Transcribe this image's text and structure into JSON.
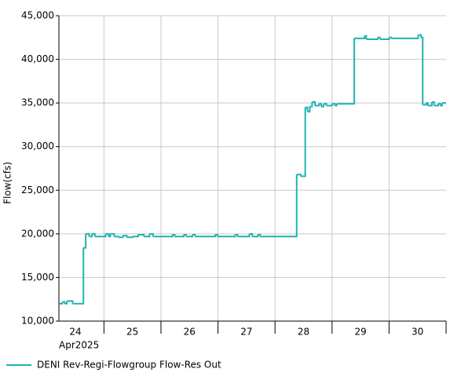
{
  "chart_data": {
    "type": "step-line",
    "y_label": "Flow(cfs)",
    "x_sublabel": "Apr2025",
    "xlim": [
      24.21,
      31
    ],
    "xticks": [
      {
        "value": 24,
        "label": "24"
      },
      {
        "value": 25,
        "label": "25"
      },
      {
        "value": 26,
        "label": "26"
      },
      {
        "value": 27,
        "label": "27"
      },
      {
        "value": 28,
        "label": "28"
      },
      {
        "value": 29,
        "label": "29"
      },
      {
        "value": 30,
        "label": "30"
      }
    ],
    "ylim": [
      10000,
      45000
    ],
    "yticks": [
      {
        "value": 10000,
        "label": "10,000"
      },
      {
        "value": 15000,
        "label": "15,000"
      },
      {
        "value": 20000,
        "label": "20,000"
      },
      {
        "value": 25000,
        "label": "25,000"
      },
      {
        "value": 30000,
        "label": "30,000"
      },
      {
        "value": 35000,
        "label": "35,000"
      },
      {
        "value": 40000,
        "label": "40,000"
      },
      {
        "value": 45000,
        "label": "45,000"
      }
    ],
    "grid": true,
    "legend": "bottom-left",
    "series": [
      {
        "name": "DENI Rev-Regi-Flowgroup Flow-Res Out",
        "color": "#1fb3b3",
        "x": [
          24.22,
          24.27,
          24.31,
          24.35,
          24.45,
          24.64,
          24.68,
          24.74,
          24.79,
          24.84,
          25.03,
          25.08,
          25.11,
          25.18,
          25.25,
          25.33,
          25.4,
          25.5,
          25.6,
          25.7,
          25.8,
          25.86,
          26.2,
          26.24,
          26.4,
          26.44,
          26.55,
          26.6,
          26.95,
          26.99,
          27.3,
          27.34,
          27.55,
          27.6,
          27.7,
          27.74,
          28.38,
          28.45,
          28.53,
          28.57,
          28.61,
          28.65,
          28.7,
          28.77,
          28.81,
          28.85,
          28.9,
          29.0,
          29.05,
          29.08,
          29.39,
          29.57,
          29.6,
          29.8,
          29.84,
          30.0,
          30.04,
          30.51,
          30.56,
          30.59,
          30.65,
          30.68,
          30.75,
          30.79,
          30.86,
          30.9,
          30.93
        ],
        "values": [
          12000,
          12200,
          12000,
          12300,
          12000,
          18400,
          20000,
          19700,
          20000,
          19700,
          20000,
          19700,
          20000,
          19700,
          19600,
          19800,
          19600,
          19700,
          19900,
          19700,
          20000,
          19700,
          19900,
          19700,
          19900,
          19700,
          19900,
          19700,
          19900,
          19700,
          19900,
          19700,
          20000,
          19700,
          19900,
          19700,
          26800,
          26600,
          34500,
          34000,
          34600,
          35100,
          34700,
          34900,
          34600,
          34900,
          34700,
          34900,
          34700,
          34900,
          42400,
          42700,
          42300,
          42500,
          42300,
          42500,
          42400,
          42800,
          42500,
          34800,
          35000,
          34700,
          35100,
          34700,
          34900,
          34700,
          35000
        ]
      }
    ]
  }
}
